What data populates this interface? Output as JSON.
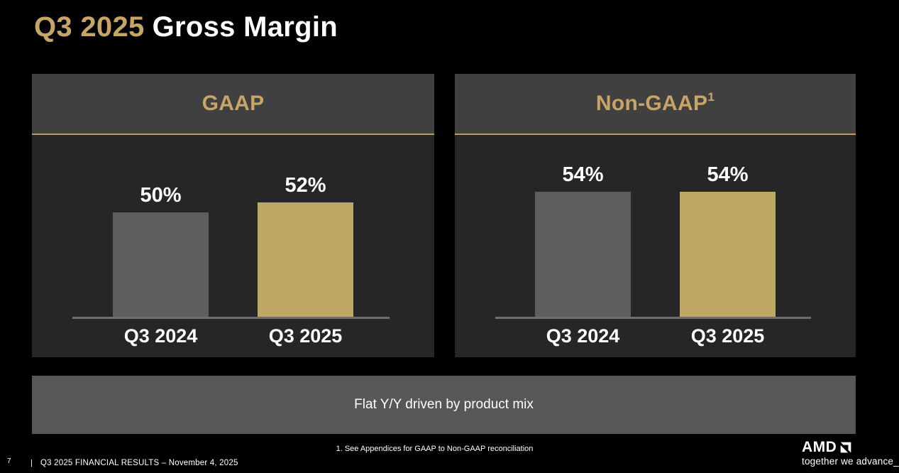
{
  "title": {
    "highlight": "Q3 2025",
    "rest": "Gross Margin"
  },
  "chart_data": [
    {
      "type": "bar",
      "title": "GAAP",
      "title_superscript": "",
      "categories": [
        "Q3 2024",
        "Q3 2025"
      ],
      "values": [
        50,
        52
      ],
      "value_labels": [
        "50%",
        "52%"
      ],
      "unit": "%",
      "ylim": [
        30,
        65
      ],
      "grid": false,
      "legend": "none",
      "bar_colors": [
        "#5e5e5e",
        "#bfa863"
      ],
      "xlabel": "",
      "ylabel": ""
    },
    {
      "type": "bar",
      "title": "Non-GAAP",
      "title_superscript": "1",
      "categories": [
        "Q3 2024",
        "Q3 2025"
      ],
      "values": [
        54,
        54
      ],
      "value_labels": [
        "54%",
        "54%"
      ],
      "unit": "%",
      "ylim": [
        30,
        65
      ],
      "grid": false,
      "legend": "none",
      "bar_colors": [
        "#5e5e5e",
        "#bfa863"
      ],
      "xlabel": "",
      "ylabel": ""
    }
  ],
  "callout": {
    "text": "Flat Y/Y driven by product mix"
  },
  "footnote": {
    "text": "1. See Appendices for GAAP to Non-GAAP reconciliation"
  },
  "footer": {
    "page_number": "7",
    "divider": "|",
    "text": "Q3 2025 FINANCIAL RESULTS – November 4, 2025"
  },
  "brand": {
    "logo_text": "AMD",
    "logo_mark": "amd-arrow-icon",
    "tagline": "together we advance_"
  },
  "colors": {
    "background": "#000000",
    "accent_gold": "#c6a566",
    "divider_gold": "#b99c5e",
    "bar_gray": "#5e5e5e",
    "bar_gold": "#bfa863",
    "header_bg": "#404040",
    "panel_bg": "#262626",
    "callout_bg": "#575757",
    "axis_line": "#6e6e6e",
    "text": "#ffffff"
  }
}
